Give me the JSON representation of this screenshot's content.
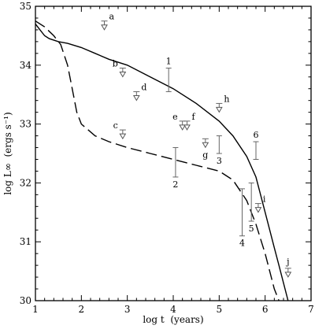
{
  "chart_data": {
    "type": "line",
    "title": "",
    "xlabel": "log t  (years)",
    "ylabel": "log L∞  (ergs s⁻¹)",
    "xlim": [
      1,
      7
    ],
    "ylim": [
      30,
      35
    ],
    "xticks": [
      1,
      2,
      3,
      4,
      5,
      6,
      7
    ],
    "yticks": [
      30,
      31,
      32,
      33,
      34,
      35
    ],
    "grid": false,
    "legend": "none",
    "series": [
      {
        "style": "solid",
        "x": [
          1.0,
          1.1,
          1.2,
          1.3,
          1.5,
          1.7,
          2.0,
          2.3,
          2.6,
          3.0,
          3.5,
          4.0,
          4.5,
          5.0,
          5.3,
          5.6,
          5.8,
          6.0,
          6.1,
          6.2,
          6.3,
          6.4,
          6.5
        ],
        "y": [
          34.7,
          34.6,
          34.5,
          34.45,
          34.4,
          34.37,
          34.3,
          34.2,
          34.1,
          34.0,
          33.8,
          33.6,
          33.35,
          33.05,
          32.8,
          32.45,
          32.1,
          31.5,
          31.2,
          30.9,
          30.6,
          30.3,
          30.0
        ]
      },
      {
        "style": "dashed",
        "x": [
          1.0,
          1.2,
          1.4,
          1.55,
          1.7,
          1.8,
          1.9,
          2.0,
          2.3,
          2.6,
          3.0,
          3.5,
          4.0,
          4.5,
          5.0,
          5.3,
          5.6,
          5.8,
          6.0,
          6.1,
          6.2,
          6.3
        ],
        "y": [
          34.75,
          34.65,
          34.5,
          34.35,
          34.0,
          33.6,
          33.2,
          33.0,
          32.8,
          32.7,
          32.6,
          32.5,
          32.4,
          32.3,
          32.2,
          32.05,
          31.7,
          31.3,
          30.8,
          30.5,
          30.2,
          30.0
        ]
      }
    ],
    "measurements": [
      {
        "label": "1",
        "x": 3.9,
        "y_low": 33.55,
        "y_high": 33.95,
        "label_pos": "above"
      },
      {
        "label": "2",
        "x": 4.05,
        "y_low": 32.1,
        "y_high": 32.6,
        "label_pos": "below"
      },
      {
        "label": "3",
        "x": 5.0,
        "y_low": 32.5,
        "y_high": 32.8,
        "label_pos": "below"
      },
      {
        "label": "4",
        "x": 5.5,
        "y_low": 31.1,
        "y_high": 31.9,
        "label_pos": "below"
      },
      {
        "label": "5",
        "x": 5.7,
        "y_low": 31.35,
        "y_high": 32.0,
        "label_pos": "below"
      },
      {
        "label": "6",
        "x": 5.8,
        "y_low": 32.4,
        "y_high": 32.7,
        "label_pos": "above"
      }
    ],
    "upper_limits": [
      {
        "label": "a",
        "x": 2.5,
        "y": 34.75,
        "label_pos": "right"
      },
      {
        "label": "b",
        "x": 2.9,
        "y": 33.95,
        "label_pos": "left"
      },
      {
        "label": "c",
        "x": 2.9,
        "y": 32.9,
        "label_pos": "left"
      },
      {
        "label": "d",
        "x": 3.2,
        "y": 33.55,
        "label_pos": "right"
      },
      {
        "label": "e",
        "x": 4.2,
        "y": 33.05,
        "label_pos": "left"
      },
      {
        "label": "f",
        "x": 4.3,
        "y": 33.05,
        "label_pos": "right"
      },
      {
        "label": "g",
        "x": 4.7,
        "y": 32.75,
        "label_pos": "below"
      },
      {
        "label": "h",
        "x": 5.0,
        "y": 33.35,
        "label_pos": "right"
      },
      {
        "label": "i",
        "x": 5.85,
        "y": 31.65,
        "label_pos": "right"
      },
      {
        "label": "j",
        "x": 6.5,
        "y": 30.55,
        "label_pos": "above"
      }
    ]
  }
}
